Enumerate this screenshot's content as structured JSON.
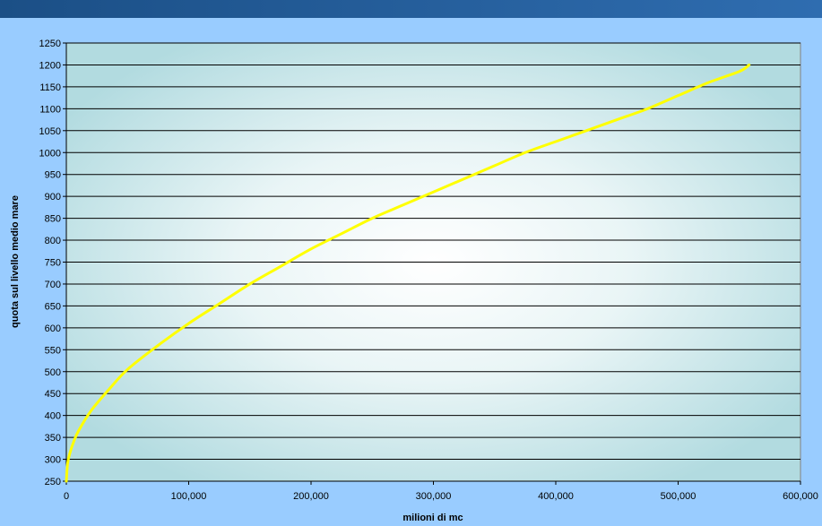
{
  "chart_data": {
    "type": "line",
    "title": "",
    "xlabel": "milioni di mc",
    "ylabel": "quota sul livello medio mare",
    "xlim": [
      0,
      600000
    ],
    "ylim": [
      250,
      1250
    ],
    "x_ticks": [
      0,
      100000,
      200000,
      300000,
      400000,
      500000,
      600000
    ],
    "x_tick_labels": [
      "0",
      "100,000",
      "200,000",
      "300,000",
      "400,000",
      "500,000",
      "600,000"
    ],
    "y_ticks": [
      250,
      300,
      350,
      400,
      450,
      500,
      550,
      600,
      650,
      700,
      750,
      800,
      850,
      900,
      950,
      1000,
      1050,
      1100,
      1150,
      1200,
      1250
    ],
    "y_tick_labels": [
      "250",
      "300",
      "350",
      "400",
      "450",
      "500",
      "550",
      "600",
      "650",
      "700",
      "750",
      "800",
      "850",
      "900",
      "950",
      "1000",
      "1050",
      "1100",
      "1150",
      "1200",
      "1250"
    ],
    "grid": "horizontal",
    "series": [
      {
        "color": "#ffff00",
        "x": [
          0,
          1000,
          3000,
          6000,
          10000,
          20000,
          35000,
          50000,
          75000,
          100000,
          125000,
          150000,
          175000,
          200000,
          225000,
          250000,
          275000,
          300000,
          325000,
          350000,
          375000,
          400000,
          425000,
          450000,
          475000,
          500000,
          525000,
          550000,
          558000
        ],
        "y": [
          250,
          290,
          315,
          340,
          365,
          410,
          460,
          505,
          560,
          610,
          655,
          700,
          740,
          780,
          815,
          850,
          880,
          910,
          940,
          970,
          1000,
          1025,
          1050,
          1075,
          1100,
          1130,
          1160,
          1185,
          1200
        ]
      }
    ]
  }
}
